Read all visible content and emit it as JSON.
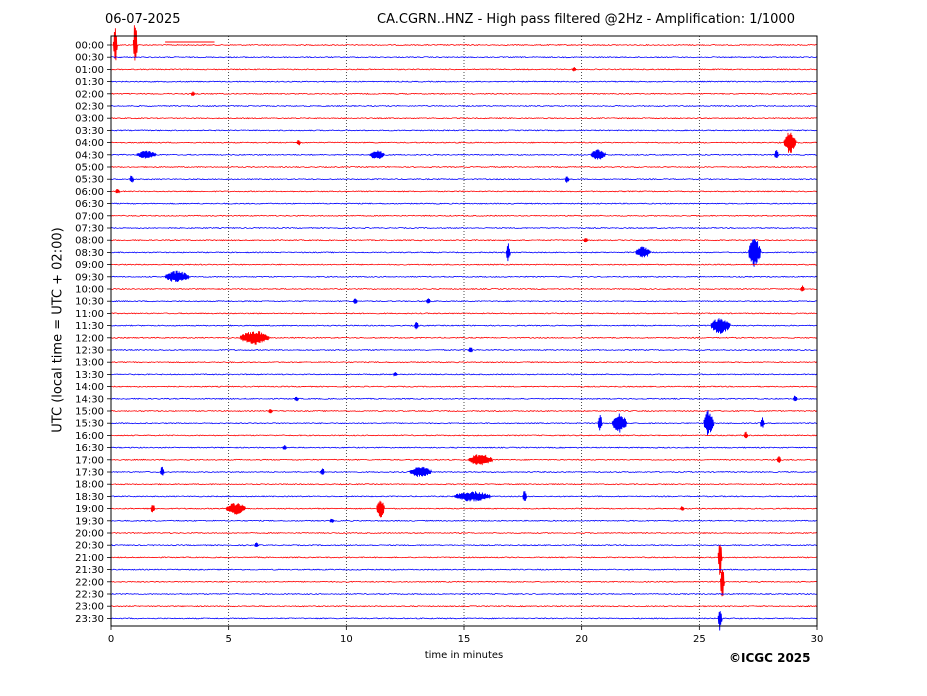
{
  "header": {
    "date": "06-07-2025",
    "title": "CA.CGRN..HNZ - High pass filtered @2Hz - Amplification: 1/1000"
  },
  "copyright": "©ICGC 2025",
  "chart_data": {
    "type": "line",
    "chart_kind": "helicorder",
    "xlabel": "time in minutes",
    "ylabel": "UTC (local time = UTC + 02:00)",
    "xlim": [
      0,
      30
    ],
    "xticks": [
      0,
      5,
      10,
      15,
      20,
      25,
      30
    ],
    "grid_x": true,
    "grid_style": "dotted vertical lines",
    "colors": [
      "#ff0000",
      "#0000ff"
    ],
    "rows": [
      "00:00",
      "00:30",
      "01:00",
      "01:30",
      "02:00",
      "02:30",
      "03:00",
      "03:30",
      "04:00",
      "04:30",
      "05:00",
      "05:30",
      "06:00",
      "06:30",
      "07:00",
      "07:30",
      "08:00",
      "08:30",
      "09:00",
      "09:30",
      "10:00",
      "10:30",
      "11:00",
      "11:30",
      "12:00",
      "12:30",
      "13:00",
      "13:30",
      "14:00",
      "14:30",
      "15:00",
      "15:30",
      "16:00",
      "16:30",
      "17:00",
      "17:30",
      "18:00",
      "18:30",
      "19:00",
      "19:30",
      "20:00",
      "20:30",
      "21:00",
      "21:30",
      "22:00",
      "22:30",
      "23:00",
      "23:30"
    ],
    "events": [
      {
        "row": 0,
        "minute": 0.1,
        "amp": 1.6
      },
      {
        "row": 0,
        "minute": 0.95,
        "amp": 2.2
      },
      {
        "row": 0,
        "minute": 2.3,
        "amp": 0.25,
        "duration": 2.1,
        "flat": true
      },
      {
        "row": 2,
        "minute": 19.6,
        "amp": 0.2
      },
      {
        "row": 4,
        "minute": 3.4,
        "amp": 0.2
      },
      {
        "row": 8,
        "minute": 7.9,
        "amp": 0.25
      },
      {
        "row": 8,
        "minute": 28.6,
        "amp": 0.9,
        "duration": 0.5
      },
      {
        "row": 9,
        "minute": 1.1,
        "amp": 0.35,
        "duration": 0.8
      },
      {
        "row": 9,
        "minute": 11.0,
        "amp": 0.4,
        "duration": 0.6
      },
      {
        "row": 9,
        "minute": 20.4,
        "amp": 0.45,
        "duration": 0.6
      },
      {
        "row": 9,
        "minute": 28.2,
        "amp": 0.4
      },
      {
        "row": 11,
        "minute": 0.8,
        "amp": 0.4
      },
      {
        "row": 11,
        "minute": 19.3,
        "amp": 0.35
      },
      {
        "row": 12,
        "minute": 0.2,
        "amp": 0.25
      },
      {
        "row": 16,
        "minute": 20.1,
        "amp": 0.25
      },
      {
        "row": 17,
        "minute": 16.8,
        "amp": 0.9
      },
      {
        "row": 17,
        "minute": 22.3,
        "amp": 0.5,
        "duration": 0.6
      },
      {
        "row": 17,
        "minute": 27.1,
        "amp": 1.2,
        "duration": 0.5
      },
      {
        "row": 19,
        "minute": 2.3,
        "amp": 0.5,
        "duration": 1.0
      },
      {
        "row": 20,
        "minute": 29.3,
        "amp": 0.3
      },
      {
        "row": 21,
        "minute": 10.3,
        "amp": 0.3
      },
      {
        "row": 21,
        "minute": 13.4,
        "amp": 0.3
      },
      {
        "row": 23,
        "minute": 12.9,
        "amp": 0.4
      },
      {
        "row": 23,
        "minute": 25.5,
        "amp": 0.7,
        "duration": 0.8
      },
      {
        "row": 24,
        "minute": 5.5,
        "amp": 0.6,
        "duration": 1.2
      },
      {
        "row": 25,
        "minute": 15.2,
        "amp": 0.3
      },
      {
        "row": 27,
        "minute": 12.0,
        "amp": 0.2
      },
      {
        "row": 29,
        "minute": 7.8,
        "amp": 0.25
      },
      {
        "row": 29,
        "minute": 29.0,
        "amp": 0.3
      },
      {
        "row": 30,
        "minute": 6.7,
        "amp": 0.25
      },
      {
        "row": 31,
        "minute": 20.7,
        "amp": 0.9
      },
      {
        "row": 31,
        "minute": 21.3,
        "amp": 0.8,
        "duration": 0.6
      },
      {
        "row": 31,
        "minute": 25.2,
        "amp": 1.1,
        "duration": 0.4
      },
      {
        "row": 31,
        "minute": 27.6,
        "amp": 0.5
      },
      {
        "row": 32,
        "minute": 26.9,
        "amp": 0.3
      },
      {
        "row": 33,
        "minute": 7.3,
        "amp": 0.25
      },
      {
        "row": 34,
        "minute": 15.2,
        "amp": 0.5,
        "duration": 1.0
      },
      {
        "row": 34,
        "minute": 28.3,
        "amp": 0.35
      },
      {
        "row": 35,
        "minute": 2.1,
        "amp": 0.45
      },
      {
        "row": 35,
        "minute": 8.9,
        "amp": 0.4
      },
      {
        "row": 35,
        "minute": 12.7,
        "amp": 0.45,
        "duration": 0.9
      },
      {
        "row": 37,
        "minute": 14.6,
        "amp": 0.45,
        "duration": 1.5
      },
      {
        "row": 37,
        "minute": 17.5,
        "amp": 0.5
      },
      {
        "row": 38,
        "minute": 1.7,
        "amp": 0.45
      },
      {
        "row": 38,
        "minute": 4.9,
        "amp": 0.5,
        "duration": 0.8
      },
      {
        "row": 38,
        "minute": 11.3,
        "amp": 0.9,
        "duration": 0.3
      },
      {
        "row": 38,
        "minute": 24.2,
        "amp": 0.25
      },
      {
        "row": 39,
        "minute": 9.3,
        "amp": 0.2
      },
      {
        "row": 41,
        "minute": 6.1,
        "amp": 0.25
      },
      {
        "row": 42,
        "minute": 25.8,
        "amp": 1.8
      },
      {
        "row": 44,
        "minute": 25.9,
        "amp": 1.4
      },
      {
        "row": 47,
        "minute": 25.8,
        "amp": 1.2
      }
    ]
  }
}
